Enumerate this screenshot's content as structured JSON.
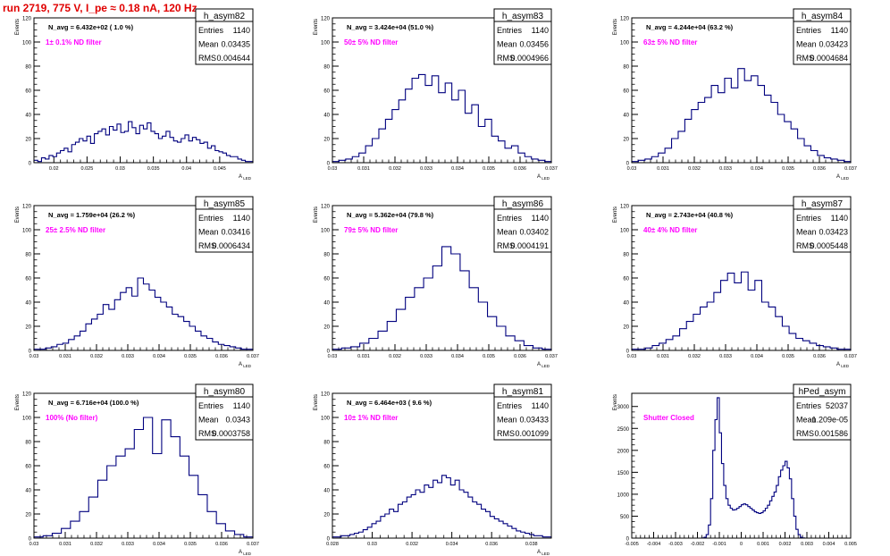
{
  "header": {
    "run_title": "run 2719,   775 V, I_pe ≈ 0.18 nA, 120 Hz"
  },
  "colors": {
    "histogram": "#00007f",
    "frame": "#000000",
    "note": "#ff00ff",
    "title": "#e00000"
  },
  "stat_labels": {
    "entries": "Entries",
    "mean": "Mean",
    "rms": "RMS"
  },
  "chart_data": [
    {
      "type": "histogram",
      "name": "h_asym82",
      "nstat": "N_avg = 6.432e+02 ( 1.0 %)",
      "note": "1± 0.1% ND filter",
      "entries": "1140",
      "mean": "0.03435",
      "rms": "0.004644",
      "ylabel": "Events",
      "xlabel": "A_LED",
      "xlim": [
        0.017,
        0.05
      ],
      "ylim": [
        0,
        120
      ],
      "xticks": [
        {
          "v": 0.02,
          "l": "0.02"
        },
        {
          "v": 0.025,
          "l": "0.025"
        },
        {
          "v": 0.03,
          "l": "0.03"
        },
        {
          "v": 0.035,
          "l": "0.035"
        },
        {
          "v": 0.04,
          "l": "0.04"
        },
        {
          "v": 0.045,
          "l": "0.045"
        }
      ],
      "yticks": [
        0,
        20,
        40,
        60,
        80,
        100,
        120
      ],
      "values": [
        2,
        1,
        4,
        3,
        6,
        5,
        8,
        10,
        12,
        9,
        15,
        17,
        20,
        18,
        22,
        16,
        24,
        26,
        28,
        23,
        30,
        27,
        32,
        25,
        26,
        34,
        29,
        24,
        31,
        28,
        33,
        26,
        24,
        20,
        22,
        26,
        21,
        18,
        17,
        20,
        23,
        18,
        21,
        19,
        16,
        17,
        12,
        14,
        10,
        9,
        8,
        6,
        5,
        5,
        3,
        2,
        1,
        1
      ]
    },
    {
      "type": "histogram",
      "name": "h_asym83",
      "nstat": "N_avg = 3.424e+04 (51.0 %)",
      "note": "50± 5% ND filter",
      "entries": "1140",
      "mean": "0.03456",
      "rms": "0.0004966",
      "ylabel": "Events",
      "xlabel": "A_LED",
      "xlim": [
        0.03,
        0.037
      ],
      "ylim": [
        0,
        120
      ],
      "xticks": [
        {
          "v": 0.03,
          "l": "0.03"
        },
        {
          "v": 0.031,
          "l": "0.031"
        },
        {
          "v": 0.032,
          "l": "0.032"
        },
        {
          "v": 0.033,
          "l": "0.033"
        },
        {
          "v": 0.034,
          "l": "0.034"
        },
        {
          "v": 0.035,
          "l": "0.035"
        },
        {
          "v": 0.036,
          "l": "0.036"
        },
        {
          "v": 0.037,
          "l": "0.037"
        }
      ],
      "yticks": [
        0,
        20,
        40,
        60,
        80,
        100,
        120
      ],
      "values": [
        1,
        2,
        3,
        5,
        8,
        14,
        20,
        28,
        36,
        44,
        52,
        61,
        70,
        73,
        64,
        72,
        58,
        66,
        52,
        60,
        41,
        48,
        30,
        36,
        22,
        18,
        12,
        14,
        8,
        5,
        3,
        2,
        1
      ]
    },
    {
      "type": "histogram",
      "name": "h_asym84",
      "nstat": "N_avg = 4.244e+04 (63.2 %)",
      "note": "63± 5% ND filter",
      "entries": "1140",
      "mean": "0.03423",
      "rms": "0.0004684",
      "ylabel": "Events",
      "xlabel": "A_LED",
      "xlim": [
        0.03,
        0.037
      ],
      "ylim": [
        0,
        120
      ],
      "xticks": [
        {
          "v": 0.03,
          "l": "0.03"
        },
        {
          "v": 0.031,
          "l": "0.031"
        },
        {
          "v": 0.032,
          "l": "0.032"
        },
        {
          "v": 0.033,
          "l": "0.033"
        },
        {
          "v": 0.034,
          "l": "0.034"
        },
        {
          "v": 0.035,
          "l": "0.035"
        },
        {
          "v": 0.036,
          "l": "0.036"
        },
        {
          "v": 0.037,
          "l": "0.037"
        }
      ],
      "yticks": [
        0,
        20,
        40,
        60,
        80,
        100,
        120
      ],
      "values": [
        1,
        2,
        3,
        5,
        8,
        12,
        20,
        26,
        36,
        44,
        50,
        54,
        64,
        58,
        70,
        62,
        78,
        68,
        72,
        64,
        56,
        50,
        40,
        34,
        28,
        20,
        14,
        10,
        6,
        4,
        3,
        2,
        1
      ]
    },
    {
      "type": "histogram",
      "name": "h_asym85",
      "nstat": "N_avg = 1.759e+04 (26.2 %)",
      "note": "25± 2.5% ND filter",
      "entries": "1140",
      "mean": "0.03416",
      "rms": "0.0006434",
      "ylabel": "Events",
      "xlabel": "A_LED",
      "xlim": [
        0.03,
        0.037
      ],
      "ylim": [
        0,
        120
      ],
      "xticks": [
        {
          "v": 0.03,
          "l": "0.03"
        },
        {
          "v": 0.031,
          "l": "0.031"
        },
        {
          "v": 0.032,
          "l": "0.032"
        },
        {
          "v": 0.033,
          "l": "0.033"
        },
        {
          "v": 0.034,
          "l": "0.034"
        },
        {
          "v": 0.035,
          "l": "0.035"
        },
        {
          "v": 0.036,
          "l": "0.036"
        },
        {
          "v": 0.037,
          "l": "0.037"
        }
      ],
      "yticks": [
        0,
        20,
        40,
        60,
        80,
        100,
        120
      ],
      "values": [
        1,
        1,
        2,
        3,
        5,
        6,
        9,
        12,
        16,
        22,
        26,
        30,
        38,
        34,
        42,
        48,
        52,
        45,
        60,
        55,
        50,
        44,
        40,
        36,
        30,
        28,
        24,
        20,
        16,
        12,
        10,
        7,
        5,
        4,
        3,
        2,
        1,
        1
      ]
    },
    {
      "type": "histogram",
      "name": "h_asym86",
      "nstat": "N_avg = 5.362e+04 (79.8 %)",
      "note": "79± 5% ND filter",
      "entries": "1140",
      "mean": "0.03402",
      "rms": "0.0004191",
      "ylabel": "Events",
      "xlabel": "A_LED",
      "xlim": [
        0.03,
        0.037
      ],
      "ylim": [
        0,
        120
      ],
      "xticks": [
        {
          "v": 0.03,
          "l": "0.03"
        },
        {
          "v": 0.031,
          "l": "0.031"
        },
        {
          "v": 0.032,
          "l": "0.032"
        },
        {
          "v": 0.033,
          "l": "0.033"
        },
        {
          "v": 0.034,
          "l": "0.034"
        },
        {
          "v": 0.035,
          "l": "0.035"
        },
        {
          "v": 0.036,
          "l": "0.036"
        },
        {
          "v": 0.037,
          "l": "0.037"
        }
      ],
      "yticks": [
        0,
        20,
        40,
        60,
        80,
        100,
        120
      ],
      "values": [
        1,
        2,
        3,
        6,
        10,
        16,
        24,
        34,
        44,
        52,
        60,
        70,
        86,
        80,
        66,
        52,
        40,
        28,
        20,
        12,
        8,
        4,
        2,
        1
      ]
    },
    {
      "type": "histogram",
      "name": "h_asym87",
      "nstat": "N_avg = 2.743e+04 (40.8 %)",
      "note": "40± 4% ND filter",
      "entries": "1140",
      "mean": "0.03423",
      "rms": "0.0005448",
      "ylabel": "Events",
      "xlabel": "A_LED",
      "xlim": [
        0.03,
        0.037
      ],
      "ylim": [
        0,
        120
      ],
      "xticks": [
        {
          "v": 0.03,
          "l": "0.03"
        },
        {
          "v": 0.031,
          "l": "0.031"
        },
        {
          "v": 0.032,
          "l": "0.032"
        },
        {
          "v": 0.033,
          "l": "0.033"
        },
        {
          "v": 0.034,
          "l": "0.034"
        },
        {
          "v": 0.035,
          "l": "0.035"
        },
        {
          "v": 0.036,
          "l": "0.036"
        },
        {
          "v": 0.037,
          "l": "0.037"
        }
      ],
      "yticks": [
        0,
        20,
        40,
        60,
        80,
        100,
        120
      ],
      "values": [
        1,
        1,
        2,
        4,
        6,
        9,
        12,
        18,
        24,
        30,
        36,
        40,
        48,
        58,
        64,
        56,
        65,
        50,
        58,
        40,
        36,
        28,
        20,
        14,
        10,
        8,
        6,
        4,
        3,
        2,
        1,
        1
      ]
    },
    {
      "type": "histogram",
      "name": "h_asym80",
      "nstat": "N_avg = 6.716e+04 (100.0 %)",
      "note": "100% (No filter)",
      "entries": "1140",
      "mean": "0.0343",
      "rms": "0.0003758",
      "ylabel": "Events",
      "xlabel": "A_LED",
      "xlim": [
        0.03,
        0.037
      ],
      "ylim": [
        0,
        120
      ],
      "xticks": [
        {
          "v": 0.03,
          "l": "0.03"
        },
        {
          "v": 0.031,
          "l": "0.031"
        },
        {
          "v": 0.032,
          "l": "0.032"
        },
        {
          "v": 0.033,
          "l": "0.033"
        },
        {
          "v": 0.034,
          "l": "0.034"
        },
        {
          "v": 0.035,
          "l": "0.035"
        },
        {
          "v": 0.036,
          "l": "0.036"
        },
        {
          "v": 0.037,
          "l": "0.037"
        }
      ],
      "yticks": [
        0,
        20,
        40,
        60,
        80,
        100,
        120
      ],
      "values": [
        1,
        2,
        4,
        8,
        14,
        22,
        34,
        48,
        60,
        68,
        74,
        90,
        100,
        70,
        98,
        84,
        68,
        52,
        36,
        22,
        12,
        6,
        3,
        1
      ]
    },
    {
      "type": "histogram",
      "name": "h_asym81",
      "nstat": "N_avg = 6.464e+03 ( 9.6 %)",
      "note": "10± 1% ND filter",
      "entries": "1140",
      "mean": "0.03433",
      "rms": "0.001099",
      "ylabel": "Events",
      "xlabel": "A_LED",
      "xlim": [
        0.028,
        0.039
      ],
      "ylim": [
        0,
        120
      ],
      "xticks": [
        {
          "v": 0.028,
          "l": "0.028"
        },
        {
          "v": 0.03,
          "l": "0.03"
        },
        {
          "v": 0.032,
          "l": "0.032"
        },
        {
          "v": 0.034,
          "l": "0.034"
        },
        {
          "v": 0.036,
          "l": "0.036"
        },
        {
          "v": 0.038,
          "l": "0.038"
        }
      ],
      "yticks": [
        0,
        20,
        40,
        60,
        80,
        100,
        120
      ],
      "values": [
        1,
        1,
        2,
        2,
        3,
        4,
        5,
        7,
        9,
        12,
        14,
        18,
        20,
        24,
        22,
        28,
        30,
        34,
        36,
        40,
        38,
        44,
        42,
        48,
        46,
        52,
        50,
        44,
        48,
        40,
        38,
        34,
        30,
        28,
        24,
        22,
        18,
        16,
        14,
        12,
        10,
        8,
        6,
        5,
        4,
        3,
        2,
        2,
        1,
        1
      ]
    },
    {
      "type": "histogram",
      "name": "hPed_asym",
      "nstat": "",
      "note": "Shutter Closed",
      "entries": "52037",
      "mean": "-1.209e-05",
      "rms": "0.001586",
      "ylabel": "Events",
      "xlabel": "",
      "xlim": [
        -0.005,
        0.005
      ],
      "ylim": [
        0,
        3300
      ],
      "xticks": [
        {
          "v": -0.005,
          "l": "-0.005"
        },
        {
          "v": -0.004,
          "l": "-0.004"
        },
        {
          "v": -0.003,
          "l": "-0.003"
        },
        {
          "v": -0.002,
          "l": "-0.002"
        },
        {
          "v": -0.001,
          "l": "-0.001"
        },
        {
          "v": 0,
          "l": "0"
        },
        {
          "v": 0.001,
          "l": "0.001"
        },
        {
          "v": 0.002,
          "l": "0.002"
        },
        {
          "v": 0.003,
          "l": "0.003"
        },
        {
          "v": 0.004,
          "l": "0.004"
        },
        {
          "v": 0.005,
          "l": "0.005"
        }
      ],
      "yticks": [
        0,
        500,
        1000,
        1500,
        2000,
        2500,
        3000
      ],
      "values": [
        0,
        0,
        0,
        0,
        0,
        0,
        0,
        0,
        0,
        0,
        0,
        0,
        0,
        0,
        0,
        0,
        0,
        0,
        0,
        0,
        0,
        0,
        0,
        0,
        0,
        0,
        0,
        0,
        0,
        0,
        0,
        0,
        5,
        20,
        80,
        300,
        900,
        2000,
        2700,
        3200,
        2400,
        1700,
        1200,
        900,
        750,
        680,
        640,
        650,
        680,
        720,
        760,
        780,
        760,
        720,
        680,
        640,
        600,
        580,
        560,
        580,
        620,
        680,
        750,
        850,
        950,
        1050,
        1200,
        1400,
        1550,
        1650,
        1750,
        1600,
        1350,
        900,
        500,
        200,
        80,
        20,
        5,
        0,
        0,
        0,
        0,
        0,
        0,
        0,
        0,
        0,
        0,
        0,
        0,
        0,
        0,
        0,
        0,
        0,
        0,
        0,
        0,
        0
      ]
    }
  ]
}
